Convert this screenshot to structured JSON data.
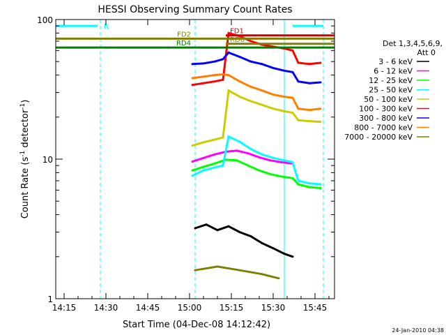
{
  "chart_data": {
    "type": "line",
    "title": "HESSI Observing Summary Count Rates",
    "xlabel": "Start Time (04-Dec-08 14:12:42)",
    "ylabel": "Count Rate (s",
    "ylabel_sup": "-1",
    "ylabel_rest": " detector",
    "ylabel_sup2": "-1",
    "ylabel_close": ")",
    "y_scale": "log",
    "ylim": [
      1,
      100
    ],
    "xlim": [
      "14:12",
      "15:52"
    ],
    "x_ticks": [
      "14:15",
      "14:30",
      "14:45",
      "15:00",
      "15:15",
      "15:30",
      "15:45"
    ],
    "y_ticks": [
      "1",
      "10",
      "100"
    ],
    "grid": false,
    "legend_position": "right",
    "legend_header": [
      "Det 1,3,4,5,6,9,",
      "Att 0"
    ],
    "footer_timestamp": "24-Jan-2010 04:38",
    "series": [
      {
        "name": "3 - 6 keV",
        "color": "#000000",
        "points": [
          [
            "15:02",
            3.2
          ],
          [
            "15:06",
            3.4
          ],
          [
            "15:10",
            3.1
          ],
          [
            "15:14",
            3.3
          ],
          [
            "15:18",
            3.0
          ],
          [
            "15:22",
            2.8
          ],
          [
            "15:26",
            2.5
          ],
          [
            "15:30",
            2.3
          ],
          [
            "15:34",
            2.1
          ],
          [
            "15:37",
            2.0
          ]
        ]
      },
      {
        "name": "6 - 12 keV",
        "color": "#ff00ff",
        "points": [
          [
            "15:01",
            9.6
          ],
          [
            "15:05",
            10.2
          ],
          [
            "15:09",
            10.8
          ],
          [
            "15:13",
            11.3
          ],
          [
            "15:17",
            11.5
          ],
          [
            "15:21",
            11.0
          ],
          [
            "15:25",
            10.3
          ],
          [
            "15:29",
            9.8
          ],
          [
            "15:33",
            9.5
          ],
          [
            "15:37",
            9.3
          ]
        ]
      },
      {
        "name": "12 - 25 keV",
        "color": "#00ff00",
        "points": [
          [
            "15:01",
            8.3
          ],
          [
            "15:05",
            8.8
          ],
          [
            "15:09",
            9.3
          ],
          [
            "15:13",
            9.9
          ],
          [
            "15:17",
            9.8
          ],
          [
            "15:21",
            9.0
          ],
          [
            "15:25",
            8.3
          ],
          [
            "15:29",
            7.8
          ],
          [
            "15:33",
            7.5
          ],
          [
            "15:37",
            7.3
          ],
          [
            "15:39",
            6.6
          ],
          [
            "15:43",
            6.3
          ],
          [
            "15:47",
            6.2
          ]
        ]
      },
      {
        "name": "25 - 50 keV",
        "color": "#00ffff",
        "points": [
          [
            "15:01",
            7.6
          ],
          [
            "15:05",
            8.3
          ],
          [
            "15:09",
            8.7
          ],
          [
            "15:12",
            9.0
          ],
          [
            "15:14",
            14.5
          ],
          [
            "15:18",
            13.3
          ],
          [
            "15:22",
            11.8
          ],
          [
            "15:26",
            10.8
          ],
          [
            "15:30",
            10.2
          ],
          [
            "15:34",
            9.8
          ],
          [
            "15:37",
            9.5
          ],
          [
            "15:39",
            7.0
          ],
          [
            "15:43",
            6.7
          ],
          [
            "15:47",
            6.6
          ]
        ]
      },
      {
        "name": "50 - 100 keV",
        "color": "#cccc00",
        "points": [
          [
            "15:01",
            12.5
          ],
          [
            "15:05",
            13.2
          ],
          [
            "15:09",
            13.8
          ],
          [
            "15:12",
            14.3
          ],
          [
            "15:14",
            31.0
          ],
          [
            "15:18",
            28.0
          ],
          [
            "15:22",
            26.0
          ],
          [
            "15:26",
            24.5
          ],
          [
            "15:30",
            23.0
          ],
          [
            "15:34",
            22.0
          ],
          [
            "15:37",
            21.5
          ],
          [
            "15:39",
            19.0
          ],
          [
            "15:43",
            18.7
          ],
          [
            "15:47",
            18.5
          ]
        ]
      },
      {
        "name": "100 - 300 keV",
        "color": "#ff0000",
        "points": [
          [
            "15:01",
            34.0
          ],
          [
            "15:05",
            35.0
          ],
          [
            "15:09",
            36.0
          ],
          [
            "15:12",
            37.0
          ],
          [
            "15:14",
            80.0
          ],
          [
            "15:18",
            76.0
          ],
          [
            "15:22",
            70.0
          ],
          [
            "15:26",
            66.0
          ],
          [
            "15:30",
            64.0
          ],
          [
            "15:34",
            62.0
          ],
          [
            "15:37",
            60.0
          ],
          [
            "15:39",
            49.0
          ],
          [
            "15:43",
            48.0
          ],
          [
            "15:47",
            49.0
          ]
        ]
      },
      {
        "name": "300 - 800 keV",
        "color": "#0000ff",
        "points": [
          [
            "15:01",
            48.0
          ],
          [
            "15:05",
            48.5
          ],
          [
            "15:09",
            50.0
          ],
          [
            "15:12",
            52.0
          ],
          [
            "15:14",
            58.0
          ],
          [
            "15:18",
            54.0
          ],
          [
            "15:22",
            50.0
          ],
          [
            "15:26",
            48.0
          ],
          [
            "15:30",
            45.0
          ],
          [
            "15:34",
            43.0
          ],
          [
            "15:37",
            42.0
          ],
          [
            "15:39",
            36.0
          ],
          [
            "15:43",
            35.0
          ],
          [
            "15:47",
            35.5
          ]
        ]
      },
      {
        "name": "800 - 7000 keV",
        "color": "#ff8000",
        "points": [
          [
            "15:01",
            38.0
          ],
          [
            "15:05",
            39.0
          ],
          [
            "15:09",
            40.0
          ],
          [
            "15:12",
            40.5
          ],
          [
            "15:14",
            40.0
          ],
          [
            "15:18",
            36.0
          ],
          [
            "15:22",
            33.0
          ],
          [
            "15:26",
            31.0
          ],
          [
            "15:30",
            29.0
          ],
          [
            "15:34",
            28.0
          ],
          [
            "15:37",
            27.5
          ],
          [
            "15:39",
            23.0
          ],
          [
            "15:43",
            22.5
          ],
          [
            "15:47",
            23.0
          ]
        ]
      },
      {
        "name": "7000 - 20000 keV",
        "color": "#808000",
        "points": [
          [
            "15:02",
            1.6
          ],
          [
            "15:10",
            1.7
          ],
          [
            "15:18",
            1.6
          ],
          [
            "15:26",
            1.5
          ],
          [
            "15:32",
            1.4
          ]
        ]
      }
    ],
    "state_bars": [
      {
        "label": "N",
        "color": "#00ffff",
        "start": "14:12",
        "end": "14:27",
        "y": 90
      },
      {
        "label": "",
        "color": "#00ffff",
        "start": "15:37",
        "end": "15:48",
        "y": 90
      },
      {
        "label": "FD1",
        "color": "#cc0000",
        "start": "15:13",
        "end": "15:52",
        "y": 77
      },
      {
        "label": "FD2",
        "color": "#808000",
        "start": "14:12",
        "end": "15:52",
        "y": 73
      },
      {
        "label": "RD0",
        "color": "#808000",
        "start": "15:13",
        "end": "15:52",
        "y": 67
      },
      {
        "label": "RD4",
        "color": "#008000",
        "start": "14:12",
        "end": "15:52",
        "y": 63
      }
    ],
    "vertical_markers": [
      {
        "time": "14:12",
        "style": "solid"
      },
      {
        "time": "14:28",
        "style": "dashed"
      },
      {
        "time": "15:02",
        "style": "dashed"
      },
      {
        "time": "15:34",
        "style": "solid"
      },
      {
        "time": "15:48",
        "style": "dashed"
      }
    ]
  }
}
